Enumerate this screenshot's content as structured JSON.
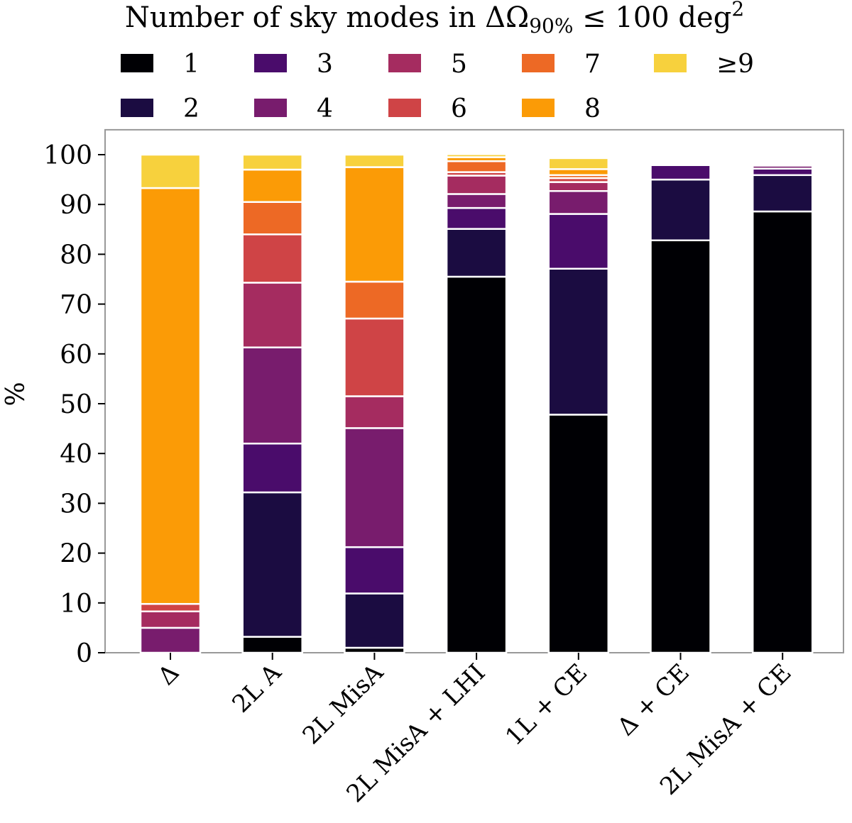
{
  "chart_data": {
    "type": "bar",
    "stacked": true,
    "title": "Number of sky modes in ΔΩ90% ≤ 100 deg2",
    "title_parts": {
      "prefix": "Number of sky modes in ΔΩ",
      "subscript": "90%",
      "middle": " ≤ 100 deg",
      "superscript": "2"
    },
    "xlabel": "",
    "ylabel": "%",
    "ylim": [
      0,
      105
    ],
    "yticks": [
      0,
      10,
      20,
      30,
      40,
      50,
      60,
      70,
      80,
      90,
      100
    ],
    "categories": [
      "Δ",
      "2L A",
      "2L MisA",
      "2L MisA + LHI",
      "1L + CE",
      "Δ + CE",
      "2L MisA + CE"
    ],
    "legend_position": "top",
    "series": [
      {
        "name": "1",
        "color": "#000004",
        "values": [
          0,
          3.2,
          1.0,
          75.5,
          47.8,
          82.8,
          88.6
        ]
      },
      {
        "name": "2",
        "color": "#1b0c41",
        "values": [
          0,
          29.0,
          10.9,
          9.6,
          29.3,
          12.2,
          7.3
        ]
      },
      {
        "name": "3",
        "color": "#4a0c6b",
        "values": [
          0,
          9.8,
          9.3,
          4.2,
          11.0,
          2.9,
          1.3
        ]
      },
      {
        "name": "4",
        "color": "#781c6d",
        "values": [
          5.0,
          19.3,
          23.9,
          2.8,
          4.6,
          0,
          0.6
        ]
      },
      {
        "name": "5",
        "color": "#a52c60",
        "values": [
          3.3,
          13.0,
          6.4,
          3.7,
          1.8,
          0,
          0.3
        ]
      },
      {
        "name": "6",
        "color": "#cf4446",
        "values": [
          1.5,
          9.7,
          15.6,
          0.7,
          0.8,
          0,
          0.2
        ]
      },
      {
        "name": "7",
        "color": "#ed6925",
        "values": [
          0,
          6.5,
          7.4,
          2.2,
          0.6,
          0,
          0.1
        ]
      },
      {
        "name": "8",
        "color": "#fb9b06",
        "values": [
          83.5,
          6.5,
          23.0,
          0.8,
          1.2,
          0.1,
          0.1
        ]
      },
      {
        "name": "≥9",
        "color": "#f7d13d",
        "values": [
          6.7,
          3.0,
          2.5,
          0.6,
          2.2,
          0.3,
          0.1
        ]
      }
    ]
  }
}
